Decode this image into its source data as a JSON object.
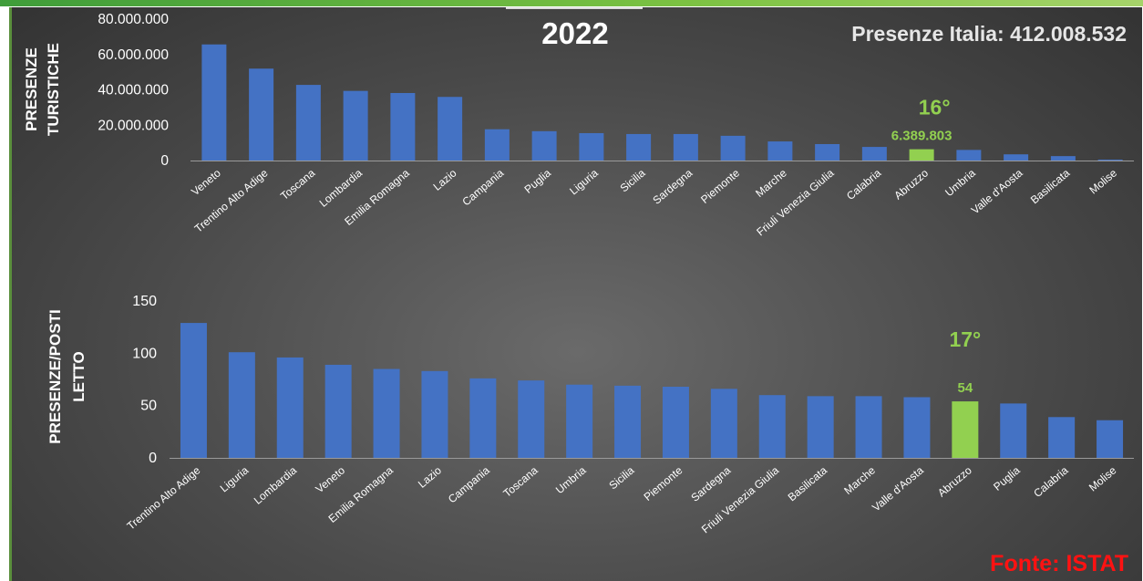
{
  "header": {
    "year": "2022",
    "total_label": "Presenze Italia: 412.008.532",
    "source": "Fonte: ISTAT"
  },
  "colors": {
    "bar": "#4472c4",
    "highlight": "#92d050",
    "axis_text": "#ffffff",
    "source_text": "#ff1212"
  },
  "chart_data": [
    {
      "type": "bar",
      "title": "",
      "ylabel": "PRESENZE TURISTICHE",
      "ylim": [
        0,
        80000000
      ],
      "yticks": [
        0,
        20000000,
        40000000,
        60000000,
        80000000
      ],
      "ytick_labels": [
        "0",
        "20.000.000",
        "40.000.000",
        "60.000.000",
        "80.000.000"
      ],
      "grid": false,
      "categories": [
        "Veneto",
        "Trentino Alto Adige",
        "Toscana",
        "Lombardia",
        "Emilia Romagna",
        "Lazio",
        "Campania",
        "Puglia",
        "Liguria",
        "Sicilia",
        "Sardegna",
        "Piemonte",
        "Marche",
        "Friuli Venezia Giulia",
        "Calabria",
        "Abruzzo",
        "Umbria",
        "Valle d'Aosta",
        "Basilicata",
        "Molise"
      ],
      "values": [
        65700000,
        52000000,
        42800000,
        39400000,
        38200000,
        36000000,
        17700000,
        16600000,
        15500000,
        15000000,
        15000000,
        14000000,
        10800000,
        9300000,
        7700000,
        6389803,
        6000000,
        3500000,
        2500000,
        500000
      ],
      "highlight": {
        "category": "Abruzzo",
        "rank_label": "16°",
        "value_label": "6.389.803"
      }
    },
    {
      "type": "bar",
      "title": "",
      "ylabel": "PRESENZE/POSTI LETTO",
      "ylim": [
        0,
        150
      ],
      "yticks": [
        0,
        50,
        100,
        150
      ],
      "ytick_labels": [
        "0",
        "50",
        "100",
        "150"
      ],
      "grid": false,
      "categories": [
        "Trentino Alto Adige",
        "Liguria",
        "Lombardia",
        "Veneto",
        "Emilia Romagna",
        "Lazio",
        "Campania",
        "Toscana",
        "Umbria",
        "Sicilia",
        "Piemonte",
        "Sardegna",
        "Friuli Venezia Giulia",
        "Basilicata",
        "Marche",
        "Valle d'Aosta",
        "Abruzzo",
        "Puglia",
        "Calabria",
        "Molise"
      ],
      "values": [
        129,
        101,
        96,
        89,
        85,
        83,
        76,
        74,
        70,
        69,
        68,
        66,
        60,
        59,
        59,
        58,
        54,
        52,
        39,
        36
      ],
      "highlight": {
        "category": "Abruzzo",
        "rank_label": "17°",
        "value_label": "54"
      }
    }
  ]
}
